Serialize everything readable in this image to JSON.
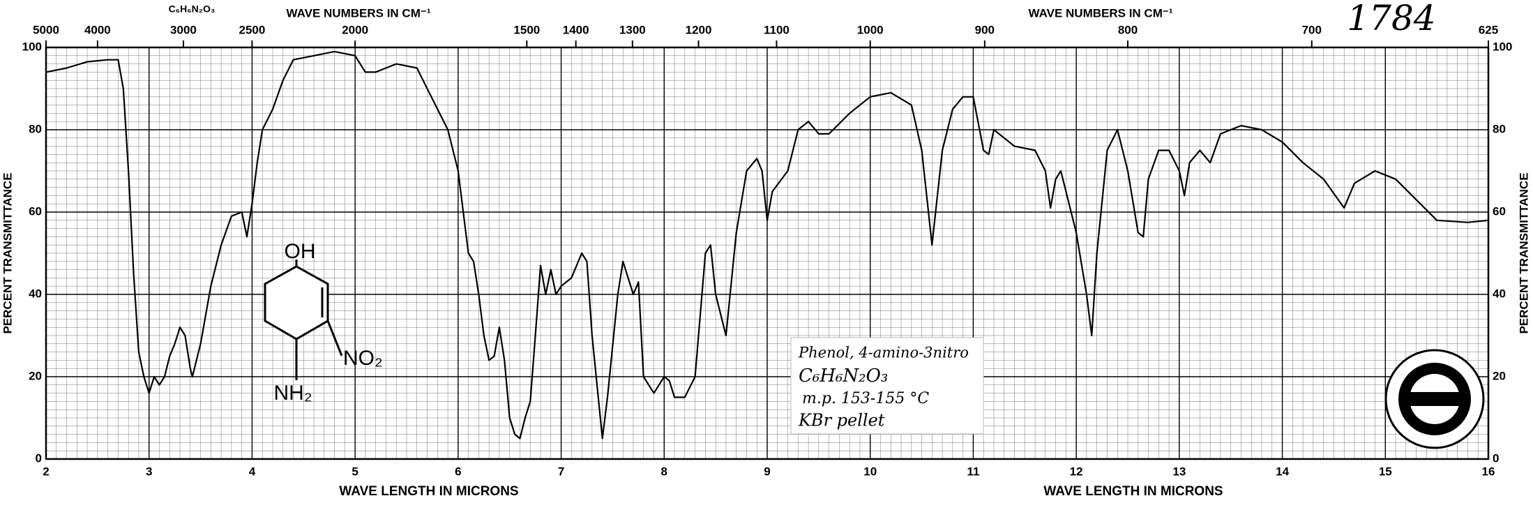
{
  "chart_data": {
    "type": "line",
    "title": "1784",
    "formula": "C₆H₆N₂O₃",
    "x2label": "WAVE NUMBERS IN CM⁻¹",
    "xlabel": "WAVE LENGTH IN MICRONS",
    "ylabel": "PERCENT TRANSMITTANCE",
    "annotations": [
      "Phenol, 4-amino-3nitro",
      "C₆H₆N₂O₃",
      "m.p. 153-155 °C",
      "KBr pellet"
    ],
    "structure_labels": [
      "OH",
      "NO₂",
      "NH₂"
    ],
    "color": "#000000",
    "grid": true,
    "xlim": [
      2,
      16
    ],
    "xticks": [
      2,
      3,
      4,
      5,
      6,
      7,
      8,
      9,
      10,
      11,
      12,
      13,
      14,
      15,
      16
    ],
    "ylim": [
      0,
      100
    ],
    "yticks": [
      0,
      20,
      40,
      60,
      80,
      100
    ],
    "x2ticks": [
      5000,
      4000,
      3000,
      2500,
      2000,
      1500,
      1400,
      1300,
      1200,
      1100,
      1000,
      900,
      800,
      700,
      625
    ],
    "x": [
      2.0,
      2.2,
      2.4,
      2.6,
      2.7,
      2.75,
      2.8,
      2.85,
      2.9,
      2.95,
      3.0,
      3.05,
      3.1,
      3.15,
      3.2,
      3.25,
      3.3,
      3.35,
      3.4,
      3.42,
      3.5,
      3.6,
      3.7,
      3.8,
      3.9,
      3.95,
      4.0,
      4.05,
      4.1,
      4.2,
      4.3,
      4.4,
      4.6,
      4.8,
      5.0,
      5.1,
      5.2,
      5.4,
      5.6,
      5.7,
      5.8,
      5.9,
      6.0,
      6.05,
      6.1,
      6.15,
      6.2,
      6.25,
      6.3,
      6.35,
      6.4,
      6.45,
      6.5,
      6.55,
      6.6,
      6.65,
      6.7,
      6.75,
      6.8,
      6.85,
      6.9,
      6.95,
      7.0,
      7.1,
      7.2,
      7.25,
      7.3,
      7.4,
      7.45,
      7.55,
      7.6,
      7.7,
      7.75,
      7.8,
      7.9,
      8.0,
      8.05,
      8.1,
      8.2,
      8.3,
      8.4,
      8.45,
      8.5,
      8.6,
      8.7,
      8.8,
      8.9,
      8.95,
      9.0,
      9.05,
      9.2,
      9.3,
      9.4,
      9.5,
      9.6,
      9.8,
      10.0,
      10.2,
      10.4,
      10.5,
      10.6,
      10.7,
      10.8,
      10.9,
      11.0,
      11.1,
      11.15,
      11.2,
      11.4,
      11.6,
      11.7,
      11.75,
      11.8,
      11.85,
      11.9,
      12.0,
      12.1,
      12.15,
      12.2,
      12.3,
      12.4,
      12.5,
      12.6,
      12.65,
      12.7,
      12.8,
      12.9,
      13.0,
      13.05,
      13.1,
      13.2,
      13.3,
      13.4,
      13.6,
      13.8,
      14.0,
      14.2,
      14.4,
      14.6,
      14.7,
      14.9,
      15.1,
      15.3,
      15.5,
      15.8,
      16.0
    ],
    "values": [
      94,
      95,
      96.5,
      97,
      97,
      90,
      70,
      45,
      26,
      20,
      16,
      20,
      18,
      20,
      25,
      28,
      32,
      30,
      22,
      20,
      28,
      42,
      52,
      59,
      60,
      54,
      62,
      72,
      80,
      85,
      92,
      97,
      98,
      99,
      98,
      94,
      94,
      96,
      95,
      90,
      85,
      80,
      70,
      60,
      50,
      48,
      40,
      30,
      24,
      25,
      32,
      24,
      10,
      6,
      5,
      10,
      14,
      30,
      47,
      40,
      46,
      40,
      42,
      44,
      50,
      48,
      30,
      5,
      15,
      40,
      48,
      40,
      43,
      20,
      16,
      20,
      19,
      15,
      15,
      20,
      50,
      52,
      40,
      30,
      55,
      70,
      73,
      70,
      58,
      65,
      70,
      80,
      82,
      79,
      79,
      84,
      88,
      89,
      86,
      75,
      52,
      75,
      85,
      88,
      88,
      75,
      74,
      80,
      76,
      75,
      70,
      61,
      68,
      70,
      65,
      55,
      40,
      30,
      50,
      75,
      80,
      70,
      55,
      54,
      68,
      75,
      75,
      70,
      64,
      72,
      75,
      72,
      79,
      81,
      80,
      77,
      72,
      68,
      61,
      67,
      70,
      68,
      63,
      58,
      57.5,
      58
    ]
  }
}
